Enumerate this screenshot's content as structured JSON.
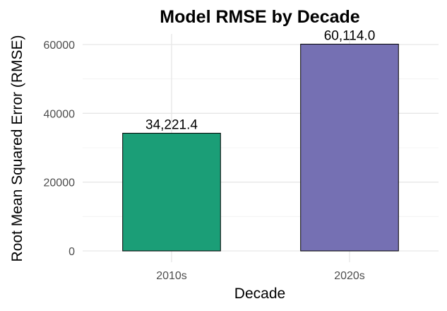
{
  "chart_data": {
    "type": "bar",
    "title": "Model RMSE by Decade",
    "xlabel": "Decade",
    "ylabel": "Root Mean Squared Error (RMSE)",
    "categories": [
      "2010s",
      "2020s"
    ],
    "values": [
      34221.4,
      60114.0
    ],
    "data_labels": [
      "34,221.4",
      "60,114.0"
    ],
    "colors": [
      "#1b9e77",
      "#7570b3"
    ],
    "ylim": [
      0,
      63000
    ],
    "yticks": [
      0,
      20000,
      40000,
      60000
    ],
    "ytick_labels": [
      "0",
      "20000",
      "40000",
      "60000"
    ],
    "grid": true,
    "legend": "none"
  }
}
